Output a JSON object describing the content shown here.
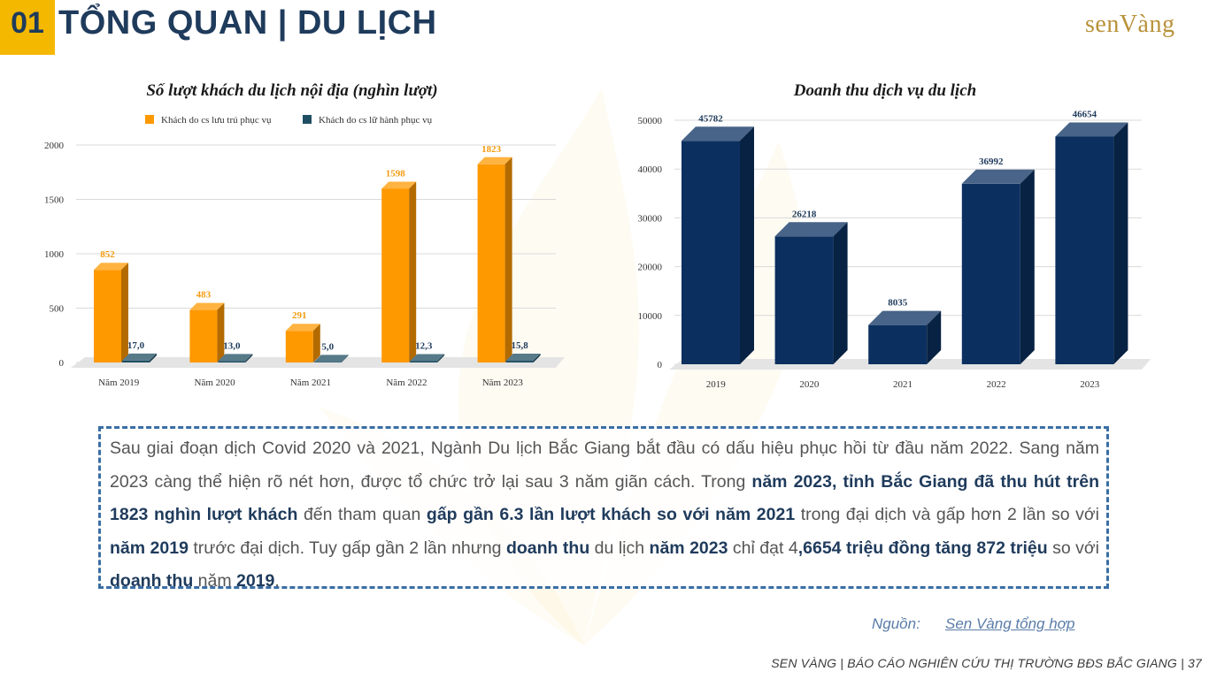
{
  "header": {
    "number": "01",
    "title": "TỔNG QUAN | DU LỊCH",
    "logo_text": "senVàng"
  },
  "colors": {
    "navy": "#1F3B5C",
    "gold": "#F5B800",
    "orange": "#FF9900",
    "teal": "#1F4E62",
    "dark_blue": "#0B3060"
  },
  "chart_data": [
    {
      "type": "bar",
      "title": "Số lượt khách du lịch nội địa (nghìn lượt)",
      "categories": [
        "Năm 2019",
        "Năm 2020",
        "Năm 2021",
        "Năm 2022",
        "Năm 2023"
      ],
      "series": [
        {
          "name": "Khách do cs lưu trú phục vụ",
          "values": [
            852,
            483,
            291,
            1598,
            1823
          ],
          "labels": [
            "852",
            "483",
            "291",
            "1598",
            "1823"
          ]
        },
        {
          "name": "Khách do cs lữ hành phục vụ",
          "values": [
            17.0,
            13.0,
            5.0,
            12.3,
            15.8
          ],
          "labels": [
            "17,0",
            "13,0",
            "5,0",
            "12,3",
            "15,8"
          ]
        }
      ],
      "ylim": [
        0,
        2000
      ],
      "yticks": [
        0,
        500,
        1000,
        1500,
        2000
      ],
      "legend": "top",
      "grid": true
    },
    {
      "type": "bar",
      "title": "Doanh thu dịch vụ du lịch",
      "categories": [
        "2019",
        "2020",
        "2021",
        "2022",
        "2023"
      ],
      "series": [
        {
          "values": [
            45782,
            26218,
            8035,
            36992,
            46654
          ],
          "labels": [
            "45782",
            "26218",
            "8035",
            "36992",
            "46654"
          ]
        }
      ],
      "ylim": [
        0,
        50000
      ],
      "yticks": [
        0,
        10000,
        20000,
        30000,
        40000,
        50000
      ],
      "grid": true
    }
  ],
  "paragraph": {
    "t1": "Sau giai đoạn dịch Covid 2020 và 2021, Ngành Du lịch Bắc Giang bắt đầu có dấu hiệu phục hồi từ đầu năm 2022. Sang năm 2023 càng thể hiện rõ nét hơn, được tổ chức trở lại sau 3 năm giãn cách. Trong ",
    "b1": "năm 2023, tỉnh Bắc Giang đã thu hút trên 1823 nghìn lượt khách",
    "t2": " đến tham quan ",
    "b2": "gấp gần 6.3 lần lượt khách so với năm 2021",
    "t3": " trong đại dịch và gấp hơn 2 lần so với ",
    "b3": "năm 2019",
    "t4": " trước đại dịch. Tuy gấp gần 2 lần nhưng ",
    "b4": "doanh thu",
    "t5": " du lịch ",
    "b5": "năm 2023",
    "t6": " chỉ đạt 4",
    "b6": ",6654 triệu đồng tăng 872 triệu",
    "t7": " so với ",
    "b7": "doanh thu",
    "t8": " năm ",
    "b8": "2019",
    "t9": "."
  },
  "source": {
    "label": "Nguồn:",
    "link": "Sen Vàng tổng hợp"
  },
  "footer": "SEN VÀNG | BÁO CÁO NGHIÊN CỨU THỊ TRƯỜNG BĐS BẮC GIANG | 37"
}
